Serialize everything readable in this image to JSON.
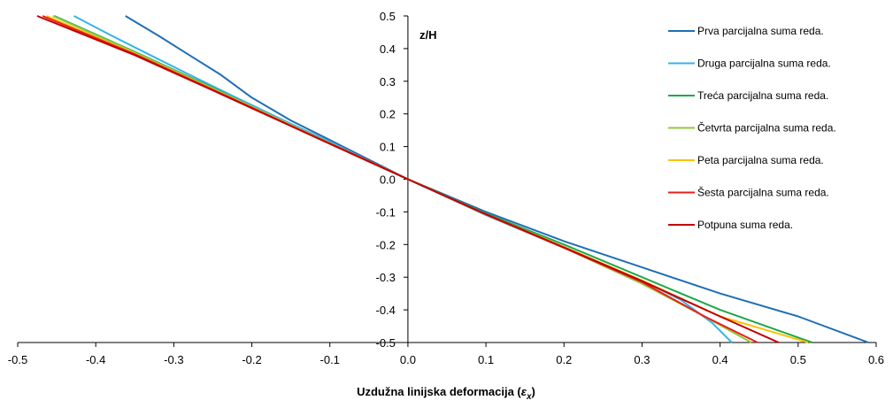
{
  "chart_data": {
    "type": "line",
    "title": "",
    "xlabel": "Uzdužna linijska deformacija (",
    "xlabel_symbol": "ε",
    "xlabel_subscript": "x",
    "xlabel_close": ")",
    "ylabel": "z/H",
    "xlim": [
      -0.5,
      0.6
    ],
    "ylim": [
      -0.5,
      0.5
    ],
    "x_ticks": [
      "-0.5",
      "-0.4",
      "-0.3",
      "-0.2",
      "-0.1",
      "0.0",
      "0.1",
      "0.2",
      "0.3",
      "0.4",
      "0.5",
      "0.6"
    ],
    "y_ticks": [
      "0.5",
      "0.4",
      "0.3",
      "0.2",
      "0.1",
      "0.0",
      "-0.1",
      "-0.2",
      "-0.3",
      "-0.4",
      "-0.5"
    ],
    "grid": false,
    "legend_position": "right",
    "series": [
      {
        "name": "Prva parcijalna suma reda.",
        "color": "#1f6fb5",
        "points": [
          [
            -0.362,
            0.5
          ],
          [
            -0.32,
            0.44
          ],
          [
            -0.28,
            0.38
          ],
          [
            -0.24,
            0.32
          ],
          [
            -0.2,
            0.25
          ],
          [
            -0.15,
            0.18
          ],
          [
            -0.1,
            0.12
          ],
          [
            -0.05,
            0.06
          ],
          [
            0.0,
            0.0
          ],
          [
            0.1,
            -0.1
          ],
          [
            0.2,
            -0.19
          ],
          [
            0.3,
            -0.27
          ],
          [
            0.4,
            -0.35
          ],
          [
            0.5,
            -0.42
          ],
          [
            0.59,
            -0.5
          ]
        ]
      },
      {
        "name": "Druga parcijalna suma reda.",
        "color": "#36b4e8",
        "points": [
          [
            -0.428,
            0.5
          ],
          [
            -0.38,
            0.44
          ],
          [
            -0.33,
            0.38
          ],
          [
            -0.28,
            0.32
          ],
          [
            -0.22,
            0.25
          ],
          [
            -0.15,
            0.17
          ],
          [
            -0.1,
            0.115
          ],
          [
            -0.05,
            0.055
          ],
          [
            0.0,
            0.0
          ],
          [
            0.1,
            -0.11
          ],
          [
            0.2,
            -0.21
          ],
          [
            0.3,
            -0.31
          ],
          [
            0.35,
            -0.37
          ],
          [
            0.39,
            -0.44
          ],
          [
            0.415,
            -0.5
          ]
        ]
      },
      {
        "name": "Treća parcijalna suma reda.",
        "color": "#1fa84a",
        "points": [
          [
            -0.453,
            0.5
          ],
          [
            -0.35,
            0.39
          ],
          [
            -0.25,
            0.28
          ],
          [
            -0.15,
            0.165
          ],
          [
            -0.05,
            0.055
          ],
          [
            0.0,
            0.0
          ],
          [
            0.1,
            -0.105
          ],
          [
            0.2,
            -0.2
          ],
          [
            0.3,
            -0.3
          ],
          [
            0.4,
            -0.4
          ],
          [
            0.518,
            -0.5
          ]
        ]
      },
      {
        "name": "Četvrta parcijalna suma reda.",
        "color": "#92c83e",
        "points": [
          [
            -0.455,
            0.5
          ],
          [
            -0.35,
            0.388
          ],
          [
            -0.25,
            0.278
          ],
          [
            -0.15,
            0.166
          ],
          [
            -0.05,
            0.055
          ],
          [
            0.0,
            0.0
          ],
          [
            0.1,
            -0.108
          ],
          [
            0.2,
            -0.21
          ],
          [
            0.3,
            -0.32
          ],
          [
            0.38,
            -0.42
          ],
          [
            0.44,
            -0.5
          ]
        ]
      },
      {
        "name": "Peta parcijalna suma reda.",
        "color": "#ffc000",
        "points": [
          [
            -0.463,
            0.5
          ],
          [
            -0.35,
            0.385
          ],
          [
            -0.25,
            0.275
          ],
          [
            -0.15,
            0.165
          ],
          [
            -0.05,
            0.055
          ],
          [
            0.0,
            0.0
          ],
          [
            0.1,
            -0.107
          ],
          [
            0.2,
            -0.207
          ],
          [
            0.3,
            -0.31
          ],
          [
            0.4,
            -0.42
          ],
          [
            0.513,
            -0.5
          ]
        ]
      },
      {
        "name": "Šesta parcijalna suma reda.",
        "color": "#e8201c",
        "points": [
          [
            -0.468,
            0.5
          ],
          [
            -0.35,
            0.383
          ],
          [
            -0.25,
            0.274
          ],
          [
            -0.15,
            0.164
          ],
          [
            -0.05,
            0.055
          ],
          [
            0.0,
            0.0
          ],
          [
            0.1,
            -0.108
          ],
          [
            0.2,
            -0.21
          ],
          [
            0.3,
            -0.315
          ],
          [
            0.38,
            -0.42
          ],
          [
            0.448,
            -0.5
          ]
        ]
      },
      {
        "name": "Potpuna suma reda.",
        "color": "#c00000",
        "points": [
          [
            -0.475,
            0.5
          ],
          [
            -0.35,
            0.38
          ],
          [
            -0.25,
            0.272
          ],
          [
            -0.15,
            0.163
          ],
          [
            -0.05,
            0.054
          ],
          [
            0.0,
            0.0
          ],
          [
            0.1,
            -0.107
          ],
          [
            0.2,
            -0.209
          ],
          [
            0.3,
            -0.312
          ],
          [
            0.4,
            -0.42
          ],
          [
            0.475,
            -0.5
          ]
        ]
      }
    ]
  }
}
